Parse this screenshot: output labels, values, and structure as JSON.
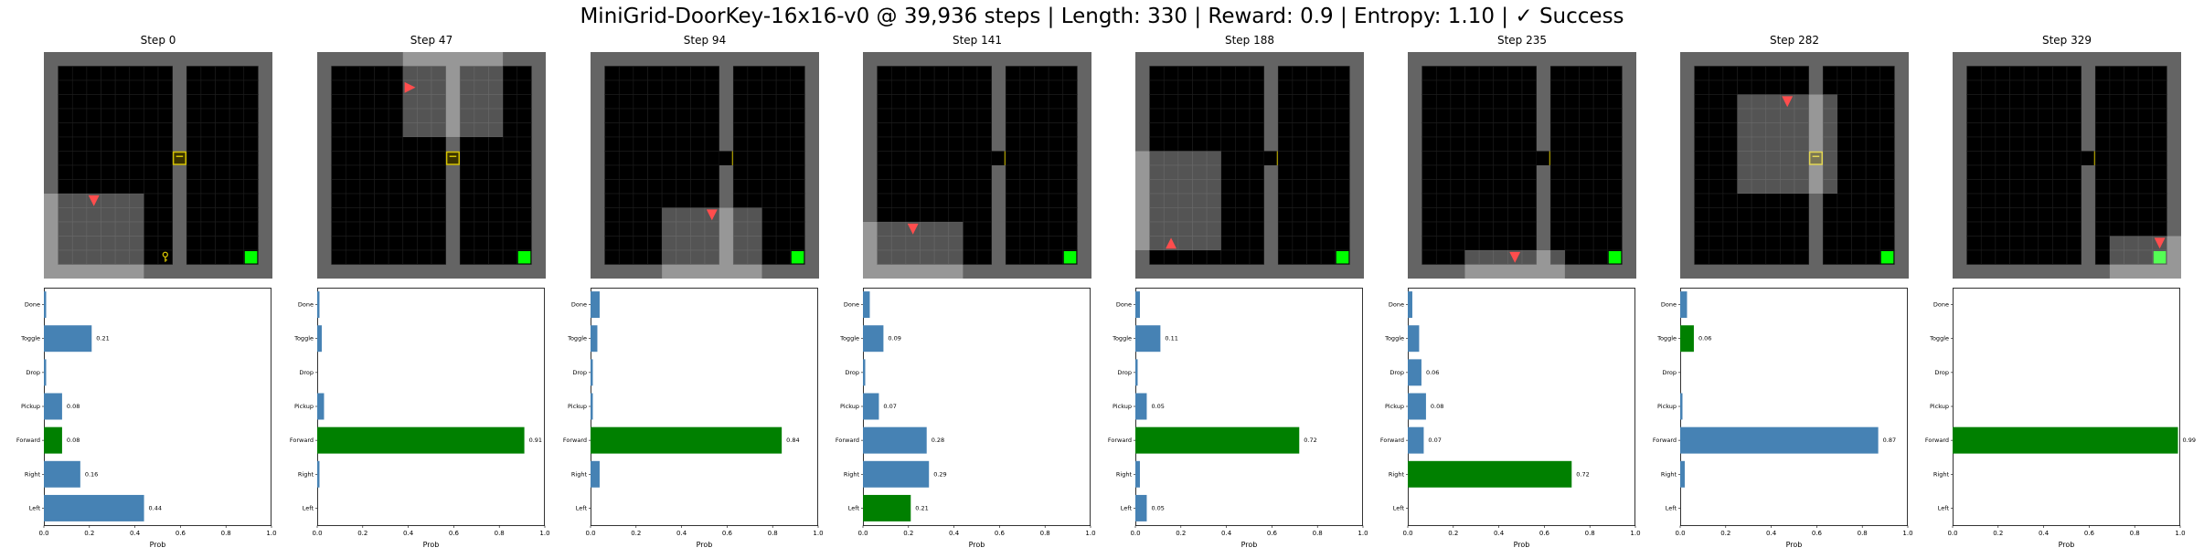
{
  "title": "MiniGrid-DoorKey-16x16-v0 @ 39,936 steps | Length: 330 | Reward: 0.9 | Entropy: 1.10 | ✓ Success",
  "colors": {
    "wall": "#646464",
    "floor": "#000000",
    "gridline": "#1e1e1e",
    "agent": "#ff4d4d",
    "goal": "#00ff00",
    "key_door": "#d4c200",
    "bar_default": "#4682b4",
    "bar_selected": "#008000",
    "visibility_overlay": "rgba(255,255,255,0.33)"
  },
  "icons": {
    "agent": "agent-triangle-icon",
    "goal": "goal-square-icon",
    "key": "key-icon",
    "door": "door-icon"
  },
  "chart_data": [
    {
      "type": "bar",
      "orientation": "horizontal",
      "title": "Step 0",
      "xlabel": "Prob",
      "xlim": [
        0,
        1.0
      ],
      "xticks": [
        "0.0",
        "0.2",
        "0.4",
        "0.6",
        "0.8",
        "1.0"
      ],
      "categories": [
        "Done",
        "Toggle",
        "Drop",
        "Pickup",
        "Forward",
        "Right",
        "Left"
      ],
      "values": [
        0.01,
        0.21,
        0.01,
        0.08,
        0.08,
        0.16,
        0.44
      ],
      "labels": [
        "",
        "0.21",
        "",
        "0.08",
        "0.08",
        "0.16",
        "0.44"
      ],
      "selected": "Forward",
      "env": {
        "agent": {
          "x": 3,
          "y": 10,
          "dir": "down"
        },
        "wall_col": 9,
        "door_row": 7,
        "key": {
          "x": 8,
          "y": 14
        },
        "goal": {
          "x": 14,
          "y": 14
        },
        "door_color": "yellow"
      }
    },
    {
      "type": "bar",
      "orientation": "horizontal",
      "title": "Step 47",
      "xlabel": "Prob",
      "xlim": [
        0,
        1.0
      ],
      "xticks": [
        "0.0",
        "0.2",
        "0.4",
        "0.6",
        "0.8",
        "1.0"
      ],
      "categories": [
        "Done",
        "Toggle",
        "Drop",
        "Pickup",
        "Forward",
        "Right",
        "Left"
      ],
      "values": [
        0.01,
        0.02,
        0.0,
        0.03,
        0.91,
        0.01,
        0.0
      ],
      "labels": [
        "",
        "",
        "",
        "",
        "0.91",
        "",
        ""
      ],
      "selected": "Forward",
      "env": {
        "agent": {
          "x": 6,
          "y": 2,
          "dir": "right"
        },
        "wall_col": 9,
        "door_row": 7,
        "key": {
          "x": 9,
          "y": 7
        },
        "goal": {
          "x": 14,
          "y": 14
        },
        "door_color": "yellow"
      }
    },
    {
      "type": "bar",
      "orientation": "horizontal",
      "title": "Step 94",
      "xlabel": "Prob",
      "xlim": [
        0,
        1.0
      ],
      "xticks": [
        "0.0",
        "0.2",
        "0.4",
        "0.6",
        "0.8",
        "1.0"
      ],
      "categories": [
        "Done",
        "Toggle",
        "Drop",
        "Pickup",
        "Forward",
        "Right",
        "Left"
      ],
      "values": [
        0.04,
        0.03,
        0.01,
        0.01,
        0.84,
        0.04,
        0.0
      ],
      "labels": [
        "",
        "",
        "",
        "",
        "0.84",
        "",
        ""
      ],
      "selected": "Forward",
      "env": {
        "agent": {
          "x": 8,
          "y": 11,
          "dir": "down"
        },
        "wall_col": 9,
        "door_row": 7,
        "key": null,
        "goal": {
          "x": 14,
          "y": 14
        },
        "door_color": "open"
      }
    },
    {
      "type": "bar",
      "orientation": "horizontal",
      "title": "Step 141",
      "xlabel": "Prob",
      "xlim": [
        0,
        1.0
      ],
      "xticks": [
        "0.0",
        "0.2",
        "0.4",
        "0.6",
        "0.8",
        "1.0"
      ],
      "categories": [
        "Done",
        "Toggle",
        "Drop",
        "Pickup",
        "Forward",
        "Right",
        "Left"
      ],
      "values": [
        0.03,
        0.09,
        0.01,
        0.07,
        0.28,
        0.29,
        0.21
      ],
      "labels": [
        "",
        "0.09",
        "",
        "0.07",
        "0.28",
        "0.29",
        "0.21"
      ],
      "selected": "Left",
      "env": {
        "agent": {
          "x": 3,
          "y": 12,
          "dir": "down"
        },
        "wall_col": 9,
        "door_row": 7,
        "key": null,
        "goal": {
          "x": 14,
          "y": 14
        },
        "door_color": "open"
      }
    },
    {
      "type": "bar",
      "orientation": "horizontal",
      "title": "Step 188",
      "xlabel": "Prob",
      "xlim": [
        0,
        1.0
      ],
      "xticks": [
        "0.0",
        "0.2",
        "0.4",
        "0.6",
        "0.8",
        "1.0"
      ],
      "categories": [
        "Done",
        "Toggle",
        "Drop",
        "Pickup",
        "Forward",
        "Right",
        "Left"
      ],
      "values": [
        0.02,
        0.11,
        0.01,
        0.05,
        0.72,
        0.02,
        0.05
      ],
      "labels": [
        "",
        "0.11",
        "",
        "0.05",
        "0.72",
        "",
        "0.05"
      ],
      "selected": "Forward",
      "env": {
        "agent": {
          "x": 2,
          "y": 13,
          "dir": "up"
        },
        "wall_col": 9,
        "door_row": 7,
        "key": null,
        "goal": {
          "x": 14,
          "y": 14
        },
        "door_color": "open"
      }
    },
    {
      "type": "bar",
      "orientation": "horizontal",
      "title": "Step 235",
      "xlabel": "Prob",
      "xlim": [
        0,
        1.0
      ],
      "xticks": [
        "0.0",
        "0.2",
        "0.4",
        "0.6",
        "0.8",
        "1.0"
      ],
      "categories": [
        "Done",
        "Toggle",
        "Drop",
        "Pickup",
        "Forward",
        "Right",
        "Left"
      ],
      "values": [
        0.02,
        0.05,
        0.06,
        0.08,
        0.07,
        0.72,
        0.0
      ],
      "labels": [
        "",
        "",
        "0.06",
        "0.08",
        "0.07",
        "0.72",
        ""
      ],
      "selected": "Right",
      "env": {
        "agent": {
          "x": 7,
          "y": 14,
          "dir": "down"
        },
        "wall_col": 9,
        "door_row": 7,
        "key": null,
        "goal": {
          "x": 14,
          "y": 14
        },
        "door_color": "open"
      }
    },
    {
      "type": "bar",
      "orientation": "horizontal",
      "title": "Step 282",
      "xlabel": "Prob",
      "xlim": [
        0,
        1.0
      ],
      "xticks": [
        "0.0",
        "0.2",
        "0.4",
        "0.6",
        "0.8",
        "1.0"
      ],
      "categories": [
        "Done",
        "Toggle",
        "Drop",
        "Pickup",
        "Forward",
        "Right",
        "Left"
      ],
      "values": [
        0.03,
        0.06,
        0.0,
        0.01,
        0.87,
        0.02,
        0.0
      ],
      "labels": [
        "",
        "0.06",
        "",
        "",
        "0.87",
        "",
        ""
      ],
      "selected": "Toggle",
      "env": {
        "agent": {
          "x": 7,
          "y": 3,
          "dir": "down"
        },
        "wall_col": 9,
        "door_row": 7,
        "key": null,
        "goal": {
          "x": 14,
          "y": 14
        },
        "door_color": "yellow"
      }
    },
    {
      "type": "bar",
      "orientation": "horizontal",
      "title": "Step 329",
      "xlabel": "Prob",
      "xlim": [
        0,
        1.0
      ],
      "xticks": [
        "0.0",
        "0.2",
        "0.4",
        "0.6",
        "0.8",
        "1.0"
      ],
      "categories": [
        "Done",
        "Toggle",
        "Drop",
        "Pickup",
        "Forward",
        "Right",
        "Left"
      ],
      "values": [
        0.0,
        0.0,
        0.0,
        0.0,
        0.99,
        0.0,
        0.0
      ],
      "labels": [
        "",
        "",
        "",
        "",
        "0.99",
        "",
        ""
      ],
      "selected": "Forward",
      "env": {
        "agent": {
          "x": 14,
          "y": 13,
          "dir": "down"
        },
        "wall_col": 9,
        "door_row": 7,
        "key": null,
        "goal": {
          "x": 14,
          "y": 14
        },
        "door_color": "open"
      }
    }
  ]
}
